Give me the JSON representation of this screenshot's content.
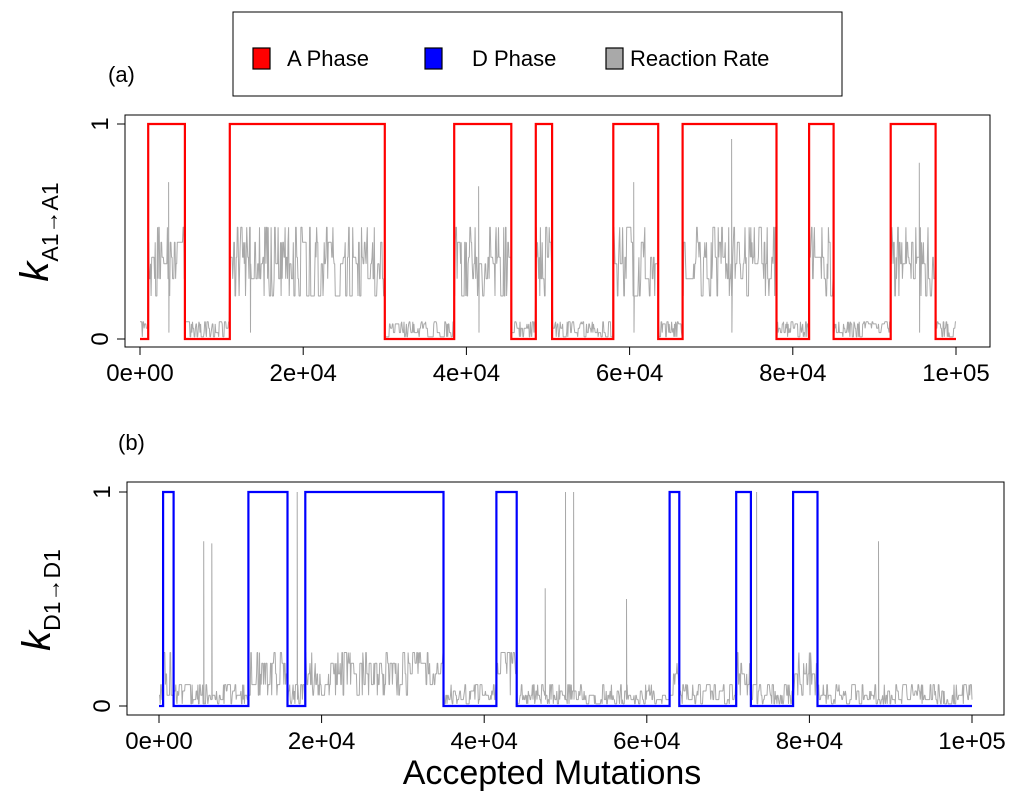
{
  "legend": {
    "items": [
      {
        "label": "A Phase",
        "color": "#ff0000"
      },
      {
        "label": "D Phase",
        "color": "#0000ff"
      },
      {
        "label": "Reaction Rate",
        "color": "#a9a9a9"
      }
    ]
  },
  "colors": {
    "a_phase": "#ff0000",
    "d_phase": "#0000ff",
    "rate": "#a9a9a9"
  },
  "chart_data": [
    {
      "panel_label": "(a)",
      "type": "line",
      "xlabel": "",
      "ylabel_main": "k",
      "ylabel_sub": "A1→A1",
      "xlim": [
        0,
        100000
      ],
      "ylim": [
        0,
        1
      ],
      "xticks": [
        {
          "value": 0,
          "label": "0e+00"
        },
        {
          "value": 20000,
          "label": "2e+04"
        },
        {
          "value": 40000,
          "label": "4e+04"
        },
        {
          "value": 60000,
          "label": "6e+04"
        },
        {
          "value": 80000,
          "label": "8e+04"
        },
        {
          "value": 100000,
          "label": "1e+05"
        }
      ],
      "yticks": [
        {
          "value": 0,
          "label": "0"
        },
        {
          "value": 1,
          "label": "1"
        }
      ],
      "phase_series": {
        "name": "A Phase",
        "color": "#ff0000",
        "high_intervals": [
          [
            1000,
            5500
          ],
          [
            11000,
            30000
          ],
          [
            38500,
            45500
          ],
          [
            48500,
            50500
          ],
          [
            58000,
            63500
          ],
          [
            66500,
            78000
          ],
          [
            82000,
            85000
          ],
          [
            92000,
            97500
          ]
        ]
      },
      "rate_series": {
        "name": "Reaction Rate",
        "color": "#a9a9a9",
        "levels_high": [
          0.2,
          0.28,
          0.35,
          0.38,
          0.45,
          0.52
        ],
        "levels_low": [
          0.01,
          0.03,
          0.05,
          0.07,
          0.08
        ],
        "spikes": [
          [
            3500,
            0.73
          ],
          [
            13500,
            0.52
          ],
          [
            41500,
            0.71
          ],
          [
            60500,
            0.73
          ],
          [
            72500,
            0.93
          ],
          [
            95500,
            0.82
          ]
        ]
      }
    },
    {
      "panel_label": "(b)",
      "type": "line",
      "xlabel": "Accepted Mutations",
      "ylabel_main": "k",
      "ylabel_sub": "D1→D1",
      "xlim": [
        0,
        100000
      ],
      "ylim": [
        0,
        1
      ],
      "xticks": [
        {
          "value": 0,
          "label": "0e+00"
        },
        {
          "value": 20000,
          "label": "2e+04"
        },
        {
          "value": 40000,
          "label": "4e+04"
        },
        {
          "value": 60000,
          "label": "6e+04"
        },
        {
          "value": 80000,
          "label": "8e+04"
        },
        {
          "value": 100000,
          "label": "1e+05"
        }
      ],
      "yticks": [
        {
          "value": 0,
          "label": "0"
        },
        {
          "value": 1,
          "label": "1"
        }
      ],
      "phase_series": {
        "name": "D Phase",
        "color": "#0000ff",
        "high_intervals": [
          [
            500,
            1800
          ],
          [
            11000,
            15800
          ],
          [
            18000,
            35000
          ],
          [
            41500,
            44000
          ],
          [
            62800,
            64000
          ],
          [
            71000,
            72800
          ],
          [
            78000,
            81000
          ]
        ]
      },
      "rate_series": {
        "name": "Reaction Rate",
        "color": "#a9a9a9",
        "levels_high": [
          0.05,
          0.1,
          0.15,
          0.2,
          0.25
        ],
        "levels_low": [
          0.01,
          0.03,
          0.05,
          0.07,
          0.1
        ],
        "spikes": [
          [
            5500,
            0.77
          ],
          [
            6500,
            0.76
          ],
          [
            17000,
            1.0
          ],
          [
            50000,
            1.0
          ],
          [
            51000,
            1.0
          ],
          [
            73500,
            1.0
          ],
          [
            88500,
            0.77
          ],
          [
            47500,
            0.55
          ],
          [
            57500,
            0.5
          ]
        ]
      }
    }
  ]
}
